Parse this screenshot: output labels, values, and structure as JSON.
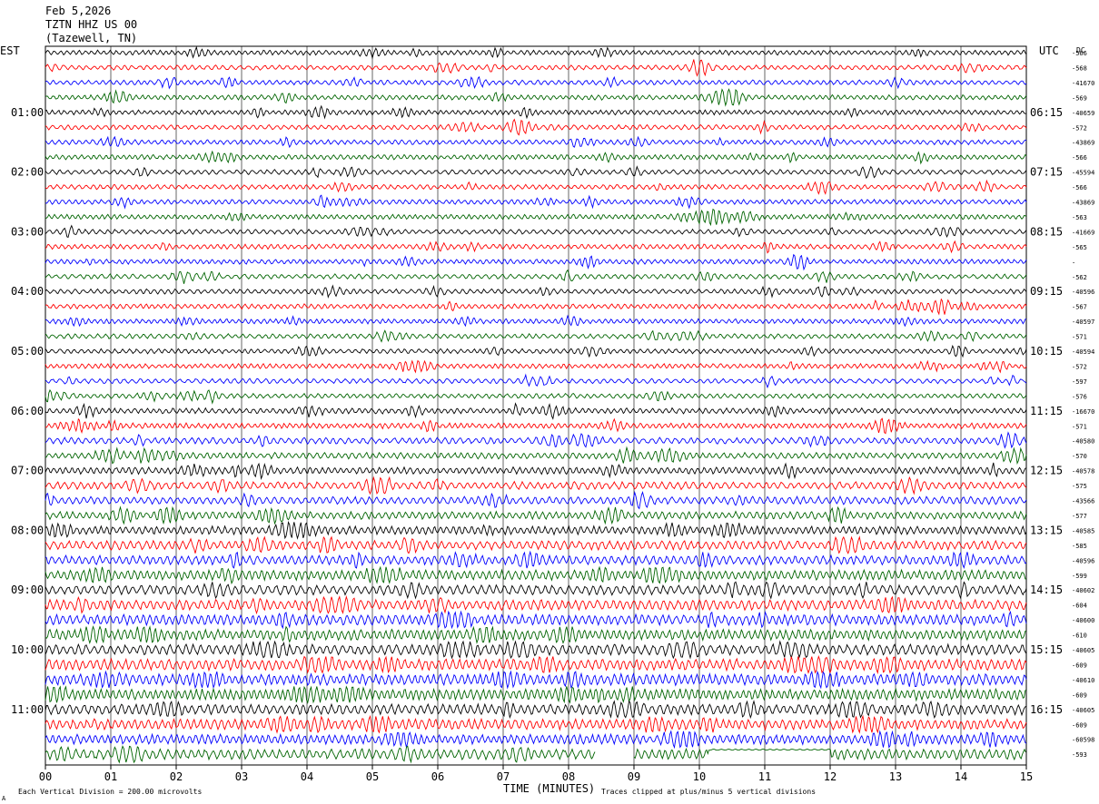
{
  "header": {
    "date": "Feb 5,2026",
    "station": "TZTN HHZ US 00",
    "location": "(Tazewell, TN)"
  },
  "left_axis_label": "EST",
  "right_axis_label": "UTC",
  "dc_label": "DC",
  "footer": {
    "scale_note": "Each Vertical Division =  200.00 microvolts",
    "xlabel": "TIME (MINUTES)",
    "clip_note": "Traces clipped at plus/minus 5 vertical divisions",
    "corner_mark": "A"
  },
  "chart_data": {
    "type": "line",
    "xlabel": "TIME (MINUTES)",
    "x_ticks": [
      "00",
      "01",
      "02",
      "03",
      "04",
      "05",
      "06",
      "07",
      "08",
      "09",
      "10",
      "11",
      "12",
      "13",
      "14",
      "15"
    ],
    "xlim": [
      0,
      15
    ],
    "trace_count": 48,
    "trace_colors": [
      "#000000",
      "#ff0000",
      "#0000ff",
      "#006400"
    ],
    "est_hour_labels": [
      "01:00",
      "02:00",
      "03:00",
      "04:00",
      "05:00",
      "06:00",
      "07:00",
      "08:00",
      "09:00",
      "10:00",
      "11:00"
    ],
    "utc_hour_labels": [
      "06:15",
      "07:15",
      "08:15",
      "09:15",
      "10:15",
      "11:15",
      "12:15",
      "13:15",
      "14:15",
      "15:15",
      "16:15"
    ],
    "dc_offsets": [
      "-566",
      "-568",
      "-41670",
      "-569",
      "-40659",
      "-572",
      "-43869",
      "-566",
      "-45594",
      "-566",
      "-43869",
      "-563",
      "-41669",
      "-565",
      "-",
      "-562",
      "-40596",
      "-567",
      "-40597",
      "-571",
      "-40594",
      "-572",
      "-597",
      "-576",
      "-16670",
      "-571",
      "-40580",
      "-570",
      "-40578",
      "-575",
      "-43566",
      "-577",
      "-40585",
      "-585",
      "-40596",
      "-599",
      "-40602",
      "-604",
      "-40600",
      "-610",
      "-40605",
      "-609",
      "-40610",
      "-609",
      "-40605",
      "-609",
      "-60598",
      "-593"
    ],
    "amplitude_envelope": [
      0.35,
      0.35,
      0.35,
      0.35,
      0.35,
      0.35,
      0.35,
      0.35,
      0.35,
      0.35,
      0.35,
      0.35,
      0.35,
      0.35,
      0.35,
      0.35,
      0.35,
      0.35,
      0.35,
      0.35,
      0.35,
      0.35,
      0.35,
      0.35,
      0.4,
      0.4,
      0.45,
      0.45,
      0.5,
      0.55,
      0.55,
      0.55,
      0.6,
      0.65,
      0.65,
      0.7,
      0.7,
      0.75,
      0.75,
      0.75,
      0.75,
      0.8,
      0.8,
      0.8,
      0.75,
      0.75,
      0.7,
      0.75
    ],
    "grid": "vertical-only"
  }
}
